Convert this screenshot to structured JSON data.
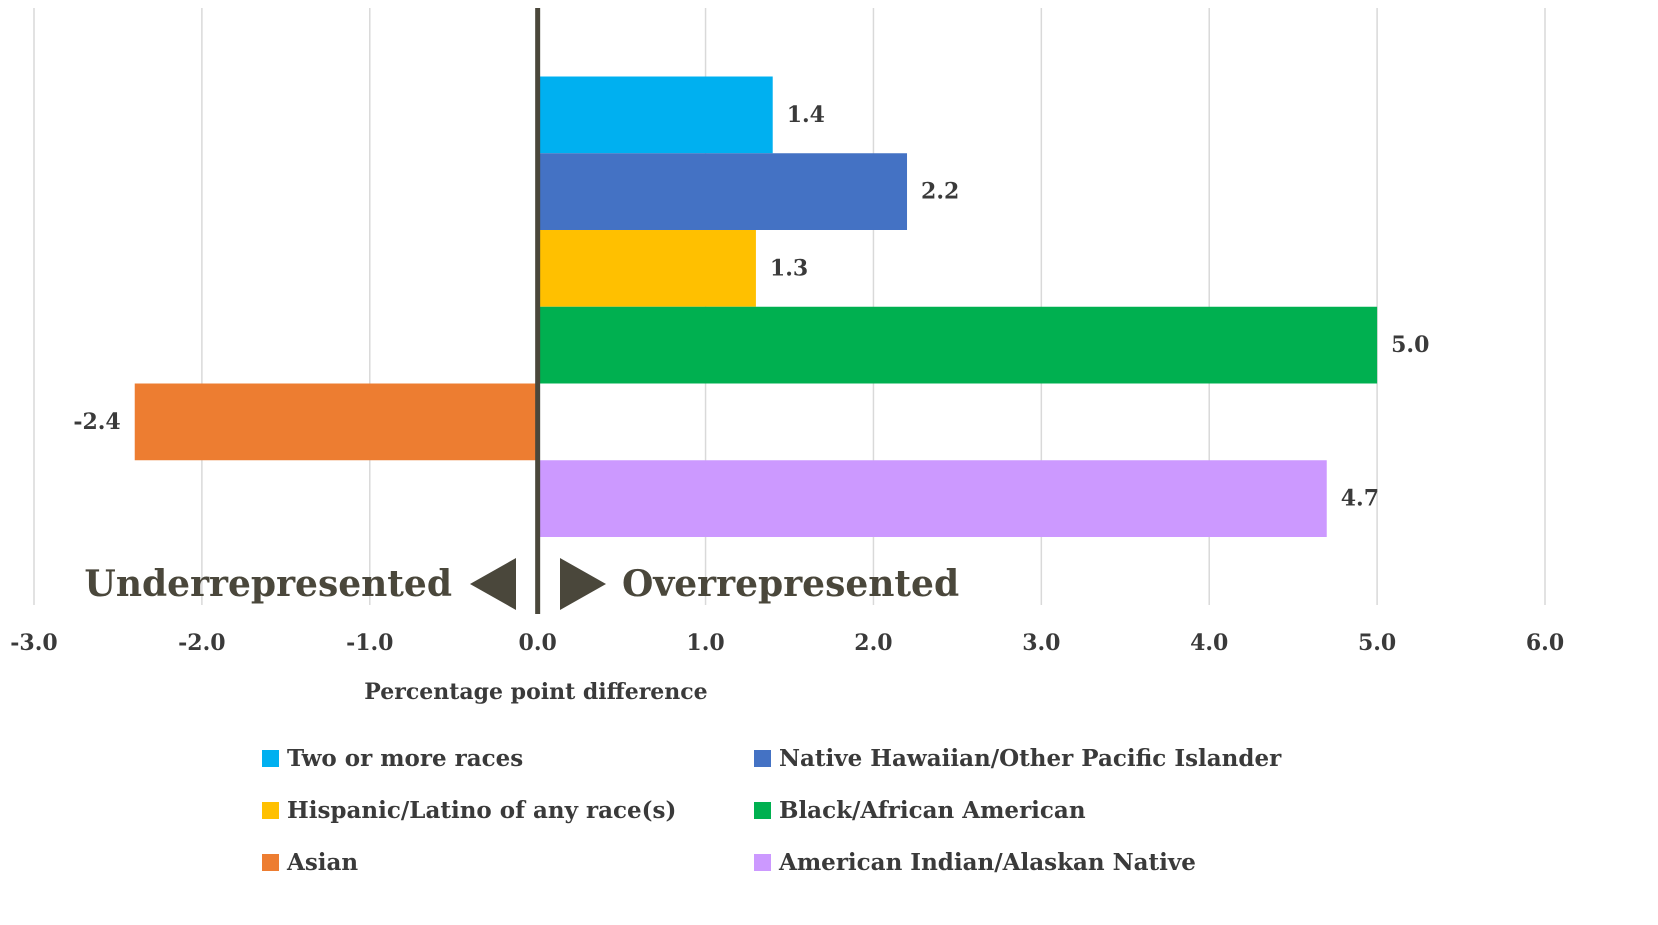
{
  "chart_data": {
    "type": "bar",
    "orientation": "horizontal",
    "categories": [
      "Two or more races",
      "Native Hawaiian/Other Pacific Islander",
      "Hispanic/Latino of any race(s)",
      "Black/African American",
      "Asian",
      "American Indian/Alaskan Native"
    ],
    "values": [
      1.4,
      2.2,
      1.3,
      5.0,
      -2.4,
      4.7
    ],
    "value_labels": [
      "1.4",
      "2.2",
      "1.3",
      "5.0",
      "-2.4",
      "4.7"
    ],
    "colors": [
      "#00b0f0",
      "#4472c4",
      "#ffc000",
      "#00b050",
      "#ed7d31",
      "#cc99ff"
    ],
    "xlabel": "Percentage point difference",
    "xlim": [
      -3.0,
      6.0
    ],
    "xticks": [
      -3.0,
      -2.0,
      -1.0,
      0.0,
      1.0,
      2.0,
      3.0,
      4.0,
      5.0,
      6.0
    ],
    "xtick_labels": [
      "-3.0",
      "-2.0",
      "-1.0",
      "0.0",
      "1.0",
      "2.0",
      "3.0",
      "4.0",
      "5.0",
      "6.0"
    ],
    "annotations": {
      "left": "Underrepresented",
      "right": "Overrepresented"
    },
    "grid": "vertical",
    "legend_position": "bottom",
    "legend_columns": 2,
    "zero_line_color": "#4a473b",
    "grid_color": "#d9d9d9"
  }
}
